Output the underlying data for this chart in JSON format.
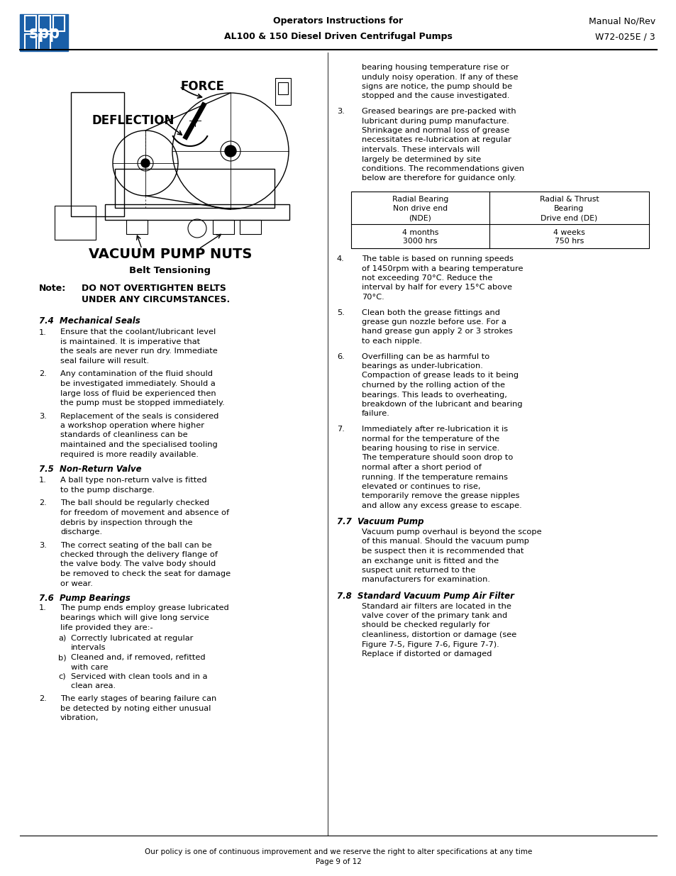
{
  "page_width": 9.54,
  "page_height": 12.35,
  "bg_color": "#ffffff",
  "header": {
    "logo_color": "#1a5fa8",
    "center_line1": "Operators Instructions for",
    "center_line2": "AL100 & 150 Diesel Driven Centrifugal Pumps",
    "right_line1": "Manual No/Rev",
    "right_line2": "W72-025E / 3"
  },
  "footer_line1": "Our policy is one of continuous improvement and we reserve the right to alter specifications at any time",
  "footer_line2": "Page 9 of 12"
}
